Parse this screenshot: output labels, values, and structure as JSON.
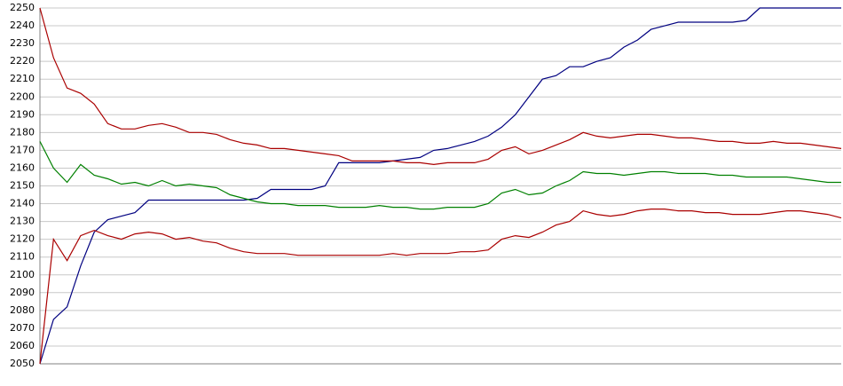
{
  "chart_data": {
    "type": "line",
    "categories": [
      null,
      null,
      null,
      null,
      null,
      null,
      null,
      null,
      null,
      null,
      null,
      null,
      null,
      null,
      null,
      null,
      null,
      null,
      null,
      null,
      null,
      null,
      null,
      null,
      null,
      null,
      null,
      null,
      null,
      null,
      null,
      null,
      null,
      null,
      null,
      null,
      null,
      null,
      null,
      null,
      null,
      null,
      null,
      null,
      null,
      null,
      null,
      null,
      null,
      null,
      null,
      null,
      null,
      null,
      null,
      null,
      null,
      null,
      null,
      null
    ],
    "series": [
      {
        "color": "#000080",
        "values": [
          2050,
          2075,
          2082,
          2105,
          2124,
          2131,
          2133,
          2135,
          2142,
          2142,
          2142,
          2142,
          2142,
          2142,
          2142,
          2142,
          2143,
          2148,
          2148,
          2148,
          2148,
          2150,
          2163,
          2163,
          2163,
          2163,
          2164,
          2165,
          2166,
          2170,
          2171,
          2173,
          2175,
          2178,
          2183,
          2190,
          2200,
          2210,
          2212,
          2217,
          2217,
          2220,
          2222,
          2228,
          2232,
          2238,
          2240,
          2242,
          2242,
          2242,
          2242,
          2242,
          2243,
          2250,
          2250,
          2250,
          2250,
          2250,
          2250,
          2250
        ]
      },
      {
        "color": "#aa0000",
        "values": [
          2250,
          2222,
          2205,
          2202,
          2196,
          2185,
          2182,
          2182,
          2184,
          2185,
          2183,
          2180,
          2180,
          2179,
          2176,
          2174,
          2173,
          2171,
          2171,
          2170,
          2169,
          2168,
          2167,
          2164,
          2164,
          2164,
          2164,
          2163,
          2163,
          2162,
          2163,
          2163,
          2163,
          2165,
          2170,
          2172,
          2168,
          2170,
          2173,
          2176,
          2180,
          2178,
          2177,
          2178,
          2179,
          2179,
          2178,
          2177,
          2177,
          2176,
          2175,
          2175,
          2174,
          2174,
          2175,
          2174,
          2174,
          2173,
          2172,
          2171
        ]
      },
      {
        "color": "#008000",
        "values": [
          2175,
          2160,
          2152,
          2162,
          2156,
          2154,
          2151,
          2152,
          2150,
          2153,
          2150,
          2151,
          2150,
          2149,
          2145,
          2143,
          2141,
          2140,
          2140,
          2139,
          2139,
          2139,
          2138,
          2138,
          2138,
          2139,
          2138,
          2138,
          2137,
          2137,
          2138,
          2138,
          2138,
          2140,
          2146,
          2148,
          2145,
          2146,
          2150,
          2153,
          2158,
          2157,
          2157,
          2156,
          2157,
          2158,
          2158,
          2157,
          2157,
          2157,
          2156,
          2156,
          2155,
          2155,
          2155,
          2155,
          2154,
          2153,
          2152,
          2152
        ]
      },
      {
        "color": "#aa0000",
        "values": [
          2050,
          2120,
          2108,
          2122,
          2125,
          2122,
          2120,
          2123,
          2124,
          2123,
          2120,
          2121,
          2119,
          2118,
          2115,
          2113,
          2112,
          2112,
          2112,
          2111,
          2111,
          2111,
          2111,
          2111,
          2111,
          2111,
          2112,
          2111,
          2112,
          2112,
          2112,
          2113,
          2113,
          2114,
          2120,
          2122,
          2121,
          2124,
          2128,
          2130,
          2136,
          2134,
          2133,
          2134,
          2136,
          2137,
          2137,
          2136,
          2136,
          2135,
          2135,
          2134,
          2134,
          2134,
          2135,
          2136,
          2136,
          2135,
          2134,
          2132
        ]
      }
    ],
    "ylim": [
      2050,
      2250
    ],
    "yticks": [
      2050,
      2060,
      2070,
      2080,
      2090,
      2100,
      2110,
      2120,
      2130,
      2140,
      2150,
      2160,
      2170,
      2180,
      2190,
      2200,
      2210,
      2220,
      2230,
      2240,
      2250
    ],
    "grid": true
  }
}
